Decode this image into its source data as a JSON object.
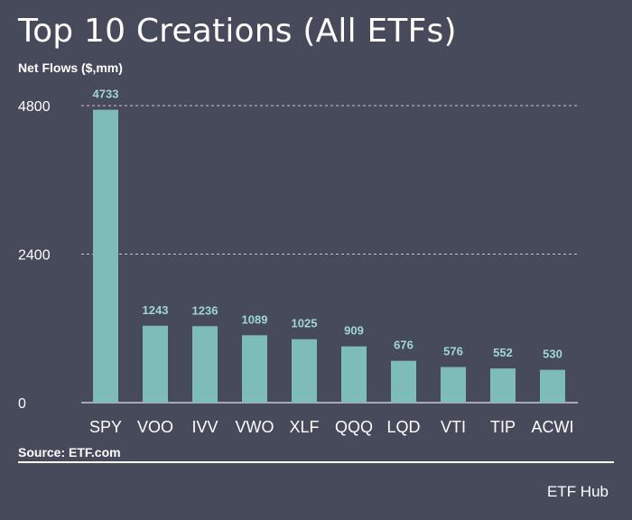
{
  "chart_data": {
    "type": "bar",
    "title": "Top 10 Creations (All ETFs)",
    "ylabel": "Net Flows ($,mm)",
    "xlabel": "",
    "categories": [
      "SPY",
      "VOO",
      "IVV",
      "VWO",
      "XLF",
      "QQQ",
      "LQD",
      "VTI",
      "TIP",
      "ACWI"
    ],
    "values": [
      4733,
      1243,
      1236,
      1089,
      1025,
      909,
      676,
      576,
      552,
      530
    ],
    "ylim": [
      0,
      4800
    ],
    "yticks": [
      "4800",
      "2400",
      "0"
    ],
    "grid": true,
    "legend": "none",
    "colors": {
      "bar": "#7dbcb8",
      "value_label": "#9fd6d2",
      "grid": "#c8c9d0",
      "axis": "#c8c9d0",
      "background": "#474a5b",
      "text": "#ffffff"
    }
  },
  "footer": {
    "source": "Source: ETF.com",
    "brand": "ETF Hub"
  }
}
